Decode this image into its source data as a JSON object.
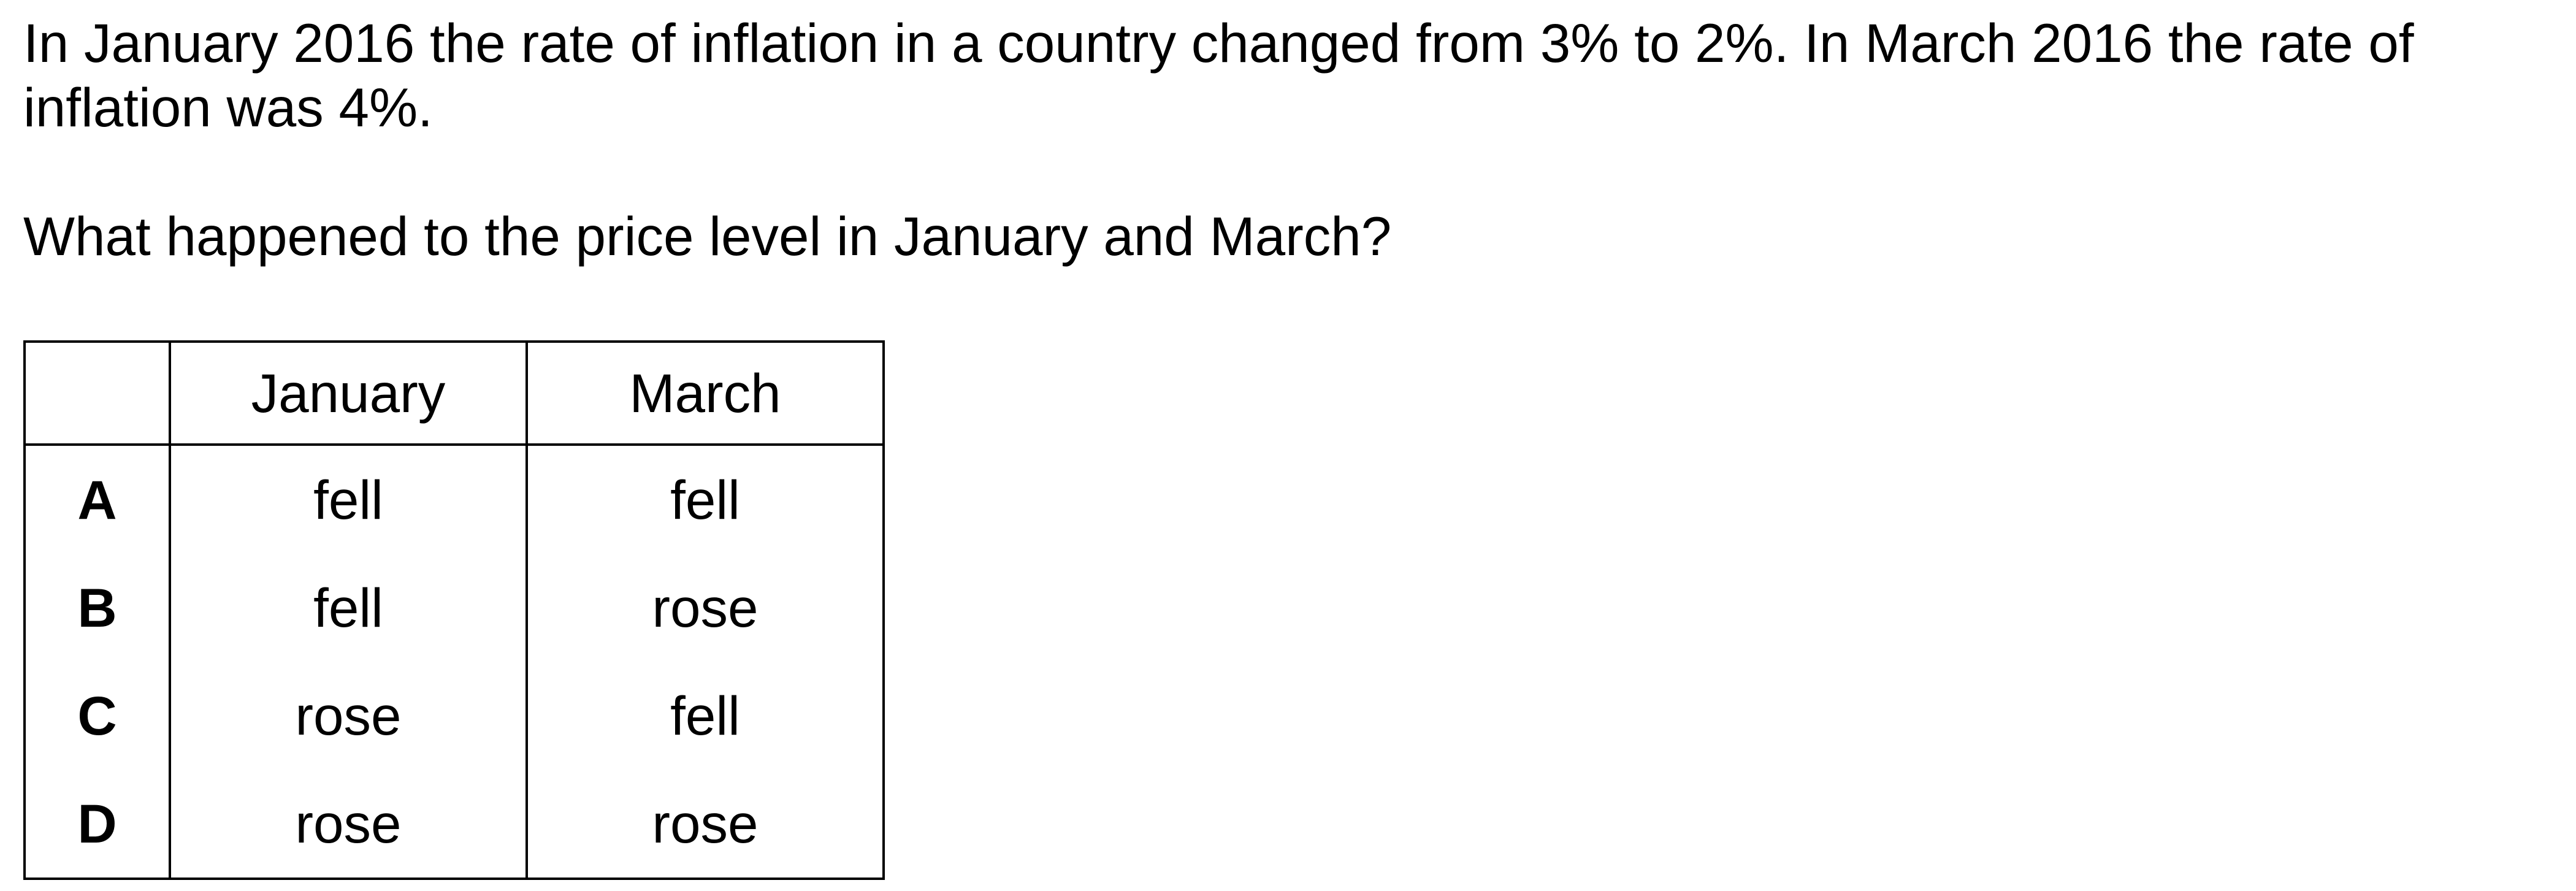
{
  "question": {
    "stem": "In January 2016 the rate of inflation in a country changed from 3% to 2%. In March 2016 the rate of inflation was 4%.",
    "prompt": "What happened to the price level in January and March?"
  },
  "table": {
    "headers": [
      "",
      "January",
      "March"
    ],
    "rows": [
      {
        "key": "A",
        "january": "fell",
        "march": "fell"
      },
      {
        "key": "B",
        "january": "fell",
        "march": "rose"
      },
      {
        "key": "C",
        "january": "rose",
        "march": "fell"
      },
      {
        "key": "D",
        "january": "rose",
        "march": "rose"
      }
    ]
  }
}
